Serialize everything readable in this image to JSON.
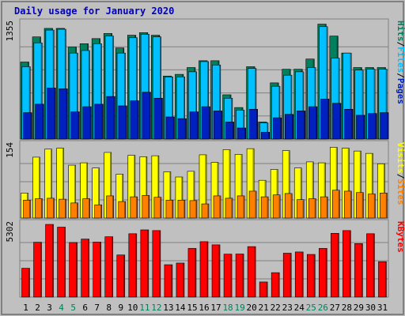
{
  "chart_data": [
    {
      "type": "bar",
      "title": "Daily usage for January 2020",
      "categories": [
        "1",
        "2",
        "3",
        "4",
        "5",
        "6",
        "7",
        "8",
        "9",
        "10",
        "11",
        "12",
        "13",
        "14",
        "15",
        "16",
        "17",
        "18",
        "19",
        "20",
        "21",
        "22",
        "23",
        "24",
        "25",
        "26",
        "27",
        "28",
        "29",
        "30",
        "31"
      ],
      "weekend_days": [
        "4",
        "5",
        "11",
        "12",
        "18",
        "19",
        "25",
        "26"
      ],
      "ylim": [
        0,
        1355
      ],
      "y_tick_label": "1355",
      "series": [
        {
          "name": "Hits",
          "values": [
            905,
            1200,
            1300,
            1300,
            1080,
            1120,
            1180,
            1240,
            1070,
            1220,
            1250,
            1220,
            740,
            760,
            840,
            920,
            920,
            520,
            370,
            850,
            200,
            660,
            820,
            820,
            940,
            1350,
            1210,
            1010,
            840,
            840,
            840
          ]
        },
        {
          "name": "Files",
          "values": [
            850,
            1130,
            1280,
            1290,
            1010,
            1040,
            1120,
            1210,
            1010,
            1190,
            1230,
            1200,
            730,
            730,
            790,
            910,
            870,
            480,
            340,
            830,
            190,
            620,
            750,
            790,
            840,
            1320,
            950,
            1010,
            810,
            820,
            820
          ]
        },
        {
          "name": "Pages",
          "values": [
            310,
            410,
            600,
            590,
            320,
            380,
            410,
            500,
            390,
            450,
            550,
            480,
            260,
            240,
            320,
            380,
            330,
            200,
            130,
            350,
            80,
            250,
            290,
            330,
            380,
            470,
            420,
            350,
            280,
            300,
            310
          ]
        }
      ],
      "legend": [
        "Pages",
        "Files",
        "Hits"
      ],
      "colors": {
        "Hits": "#00805c",
        "Files": "#00c0ff",
        "Pages": "#0020c0"
      }
    },
    {
      "type": "bar",
      "categories": [
        "1",
        "2",
        "3",
        "4",
        "5",
        "6",
        "7",
        "8",
        "9",
        "10",
        "11",
        "12",
        "13",
        "14",
        "15",
        "16",
        "17",
        "18",
        "19",
        "20",
        "21",
        "22",
        "23",
        "24",
        "25",
        "26",
        "27",
        "28",
        "29",
        "30",
        "31"
      ],
      "ylim": [
        0,
        154
      ],
      "y_tick_label": "154",
      "series": [
        {
          "name": "Visits",
          "values": [
            53,
            129,
            146,
            148,
            112,
            117,
            106,
            139,
            93,
            133,
            130,
            132,
            98,
            87,
            99,
            134,
            118,
            145,
            135,
            147,
            80,
            103,
            143,
            106,
            119,
            117,
            150,
            148,
            142,
            137,
            115
          ]
        },
        {
          "name": "Sites",
          "values": [
            38,
            41,
            42,
            40,
            32,
            41,
            28,
            47,
            35,
            45,
            48,
            44,
            38,
            38,
            37,
            30,
            47,
            42,
            47,
            57,
            45,
            49,
            52,
            39,
            41,
            45,
            59,
            57,
            54,
            51,
            53
          ]
        }
      ],
      "legend": [
        "Sites",
        "Visits"
      ],
      "colors": {
        "Visits": "#ffff00",
        "Sites": "#ff8000"
      }
    },
    {
      "type": "bar",
      "categories": [
        "1",
        "2",
        "3",
        "4",
        "5",
        "6",
        "7",
        "8",
        "9",
        "10",
        "11",
        "12",
        "13",
        "14",
        "15",
        "16",
        "17",
        "18",
        "19",
        "20",
        "21",
        "22",
        "23",
        "24",
        "25",
        "26",
        "27",
        "28",
        "29",
        "30",
        "31"
      ],
      "ylim": [
        0,
        5302
      ],
      "y_tick_label": "5302",
      "series": [
        {
          "name": "KBytes",
          "values": [
            2100,
            4000,
            5300,
            5100,
            3980,
            4230,
            4010,
            4400,
            3070,
            4620,
            4900,
            4850,
            2360,
            2480,
            3550,
            4040,
            3810,
            3130,
            3140,
            3680,
            1100,
            1780,
            3200,
            3290,
            3110,
            3550,
            4650,
            4850,
            3900,
            4620,
            2580
          ]
        }
      ],
      "legend": [
        "KBytes"
      ],
      "colors": {
        "KBytes": "#ff0000"
      }
    }
  ]
}
